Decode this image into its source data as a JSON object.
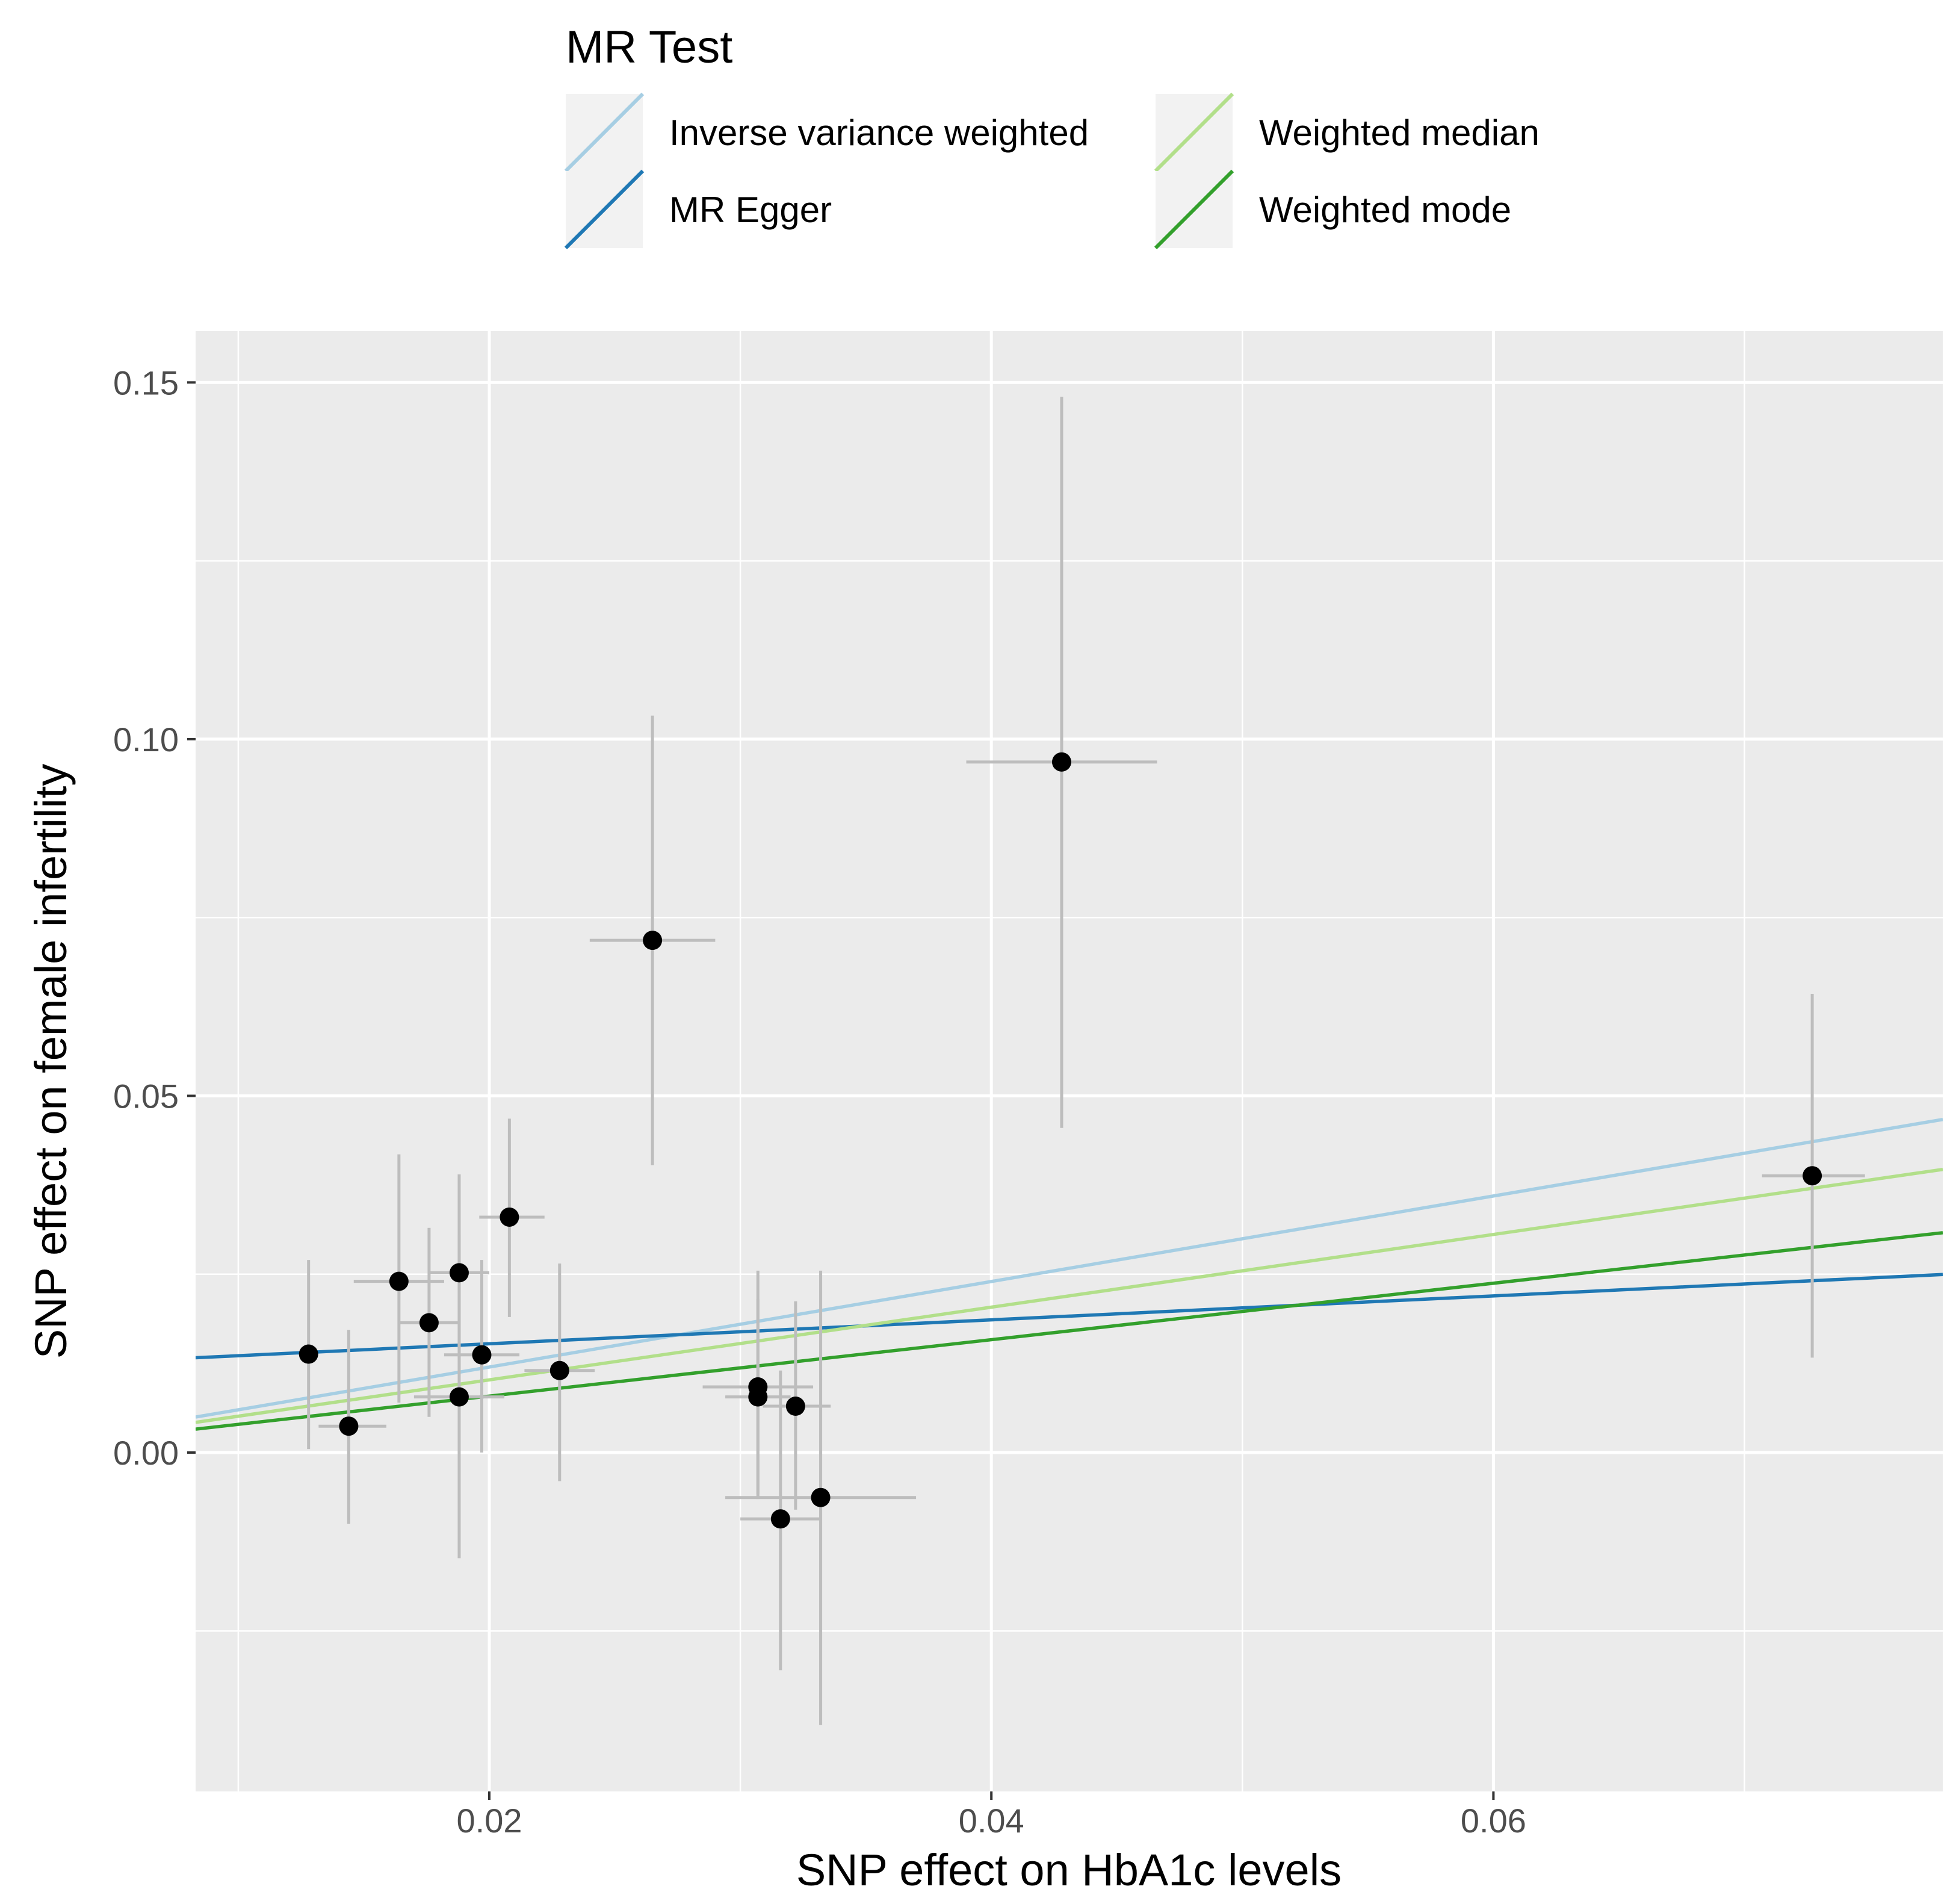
{
  "chart_data": {
    "type": "scatter",
    "title": "",
    "xlabel": "SNP effect on HbA1c levels",
    "ylabel": "SNP effect on female infertility",
    "xlim": [
      0.0083,
      0.0779
    ],
    "ylim": [
      -0.0475,
      0.1572
    ],
    "x_ticks": [
      0.02,
      0.04,
      0.06
    ],
    "x_tick_labels": [
      "0.02",
      "0.04",
      "0.06"
    ],
    "y_ticks": [
      0.0,
      0.05,
      0.1,
      0.15
    ],
    "y_tick_labels": [
      "0.00",
      "0.05",
      "0.10",
      "0.15"
    ],
    "grid": true,
    "legend": {
      "title": "MR Test",
      "placement": "top",
      "entries": [
        {
          "name": "Inverse variance weighted",
          "color": "#A6CEE3"
        },
        {
          "name": "MR Egger",
          "color": "#1F78B4"
        },
        {
          "name": "Weighted median",
          "color": "#B2DF8A"
        },
        {
          "name": "Weighted mode",
          "color": "#33A02C"
        }
      ]
    },
    "points": [
      {
        "x": 0.0128,
        "y": 0.0138,
        "x_lo": 0.0128,
        "x_hi": 0.0128,
        "y_lo": 0.0005,
        "y_hi": 0.027
      },
      {
        "x": 0.0144,
        "y": 0.0037,
        "x_lo": 0.0132,
        "x_hi": 0.0159,
        "y_lo": -0.01,
        "y_hi": 0.0172
      },
      {
        "x": 0.0164,
        "y": 0.024,
        "x_lo": 0.0146,
        "x_hi": 0.0182,
        "y_lo": 0.007,
        "y_hi": 0.0418
      },
      {
        "x": 0.0176,
        "y": 0.0182,
        "x_lo": 0.0164,
        "x_hi": 0.0188,
        "y_lo": 0.005,
        "y_hi": 0.0315
      },
      {
        "x": 0.0188,
        "y": 0.0252,
        "x_lo": 0.0176,
        "x_hi": 0.02,
        "y_lo": 0.011,
        "y_hi": 0.039
      },
      {
        "x": 0.0188,
        "y": 0.0078,
        "x_lo": 0.017,
        "x_hi": 0.0206,
        "y_lo": -0.0148,
        "y_hi": 0.0305
      },
      {
        "x": 0.0197,
        "y": 0.0137,
        "x_lo": 0.0182,
        "x_hi": 0.0212,
        "y_lo": 0.0,
        "y_hi": 0.027
      },
      {
        "x": 0.0208,
        "y": 0.033,
        "x_lo": 0.0196,
        "x_hi": 0.0222,
        "y_lo": 0.019,
        "y_hi": 0.0468
      },
      {
        "x": 0.0228,
        "y": 0.0115,
        "x_lo": 0.0214,
        "x_hi": 0.0242,
        "y_lo": -0.004,
        "y_hi": 0.0265
      },
      {
        "x": 0.0265,
        "y": 0.0718,
        "x_lo": 0.024,
        "x_hi": 0.029,
        "y_lo": 0.0403,
        "y_hi": 0.1033
      },
      {
        "x": 0.0307,
        "y": 0.0092,
        "x_lo": 0.0285,
        "x_hi": 0.0329,
        "y_lo": -0.0065,
        "y_hi": 0.0255
      },
      {
        "x": 0.0307,
        "y": 0.0078,
        "x_lo": 0.0294,
        "x_hi": 0.032,
        "y_lo": -0.0058,
        "y_hi": 0.0215
      },
      {
        "x": 0.0316,
        "y": -0.0093,
        "x_lo": 0.03,
        "x_hi": 0.0332,
        "y_lo": -0.0305,
        "y_hi": 0.0115
      },
      {
        "x": 0.0322,
        "y": 0.0065,
        "x_lo": 0.0309,
        "x_hi": 0.0336,
        "y_lo": -0.008,
        "y_hi": 0.0212
      },
      {
        "x": 0.0332,
        "y": -0.0063,
        "x_lo": 0.0294,
        "x_hi": 0.037,
        "y_lo": -0.0382,
        "y_hi": 0.0255
      },
      {
        "x": 0.0428,
        "y": 0.0968,
        "x_lo": 0.039,
        "x_hi": 0.0466,
        "y_lo": 0.0455,
        "y_hi": 0.148
      },
      {
        "x": 0.0727,
        "y": 0.0388,
        "x_lo": 0.0707,
        "x_hi": 0.0748,
        "y_lo": 0.0133,
        "y_hi": 0.0643
      }
    ],
    "lines": [
      {
        "name": "Inverse variance weighted",
        "color": "#A6CEE3",
        "intercept": 0.0,
        "slope": 0.5994
      },
      {
        "name": "MR Egger",
        "color": "#1F78B4",
        "intercept": 0.0119,
        "slope": 0.1676
      },
      {
        "name": "Weighted median",
        "color": "#B2DF8A",
        "intercept": 0.0,
        "slope": 0.5095
      },
      {
        "name": "Weighted mode",
        "color": "#33A02C",
        "intercept": 0.0,
        "slope": 0.3956
      }
    ]
  }
}
